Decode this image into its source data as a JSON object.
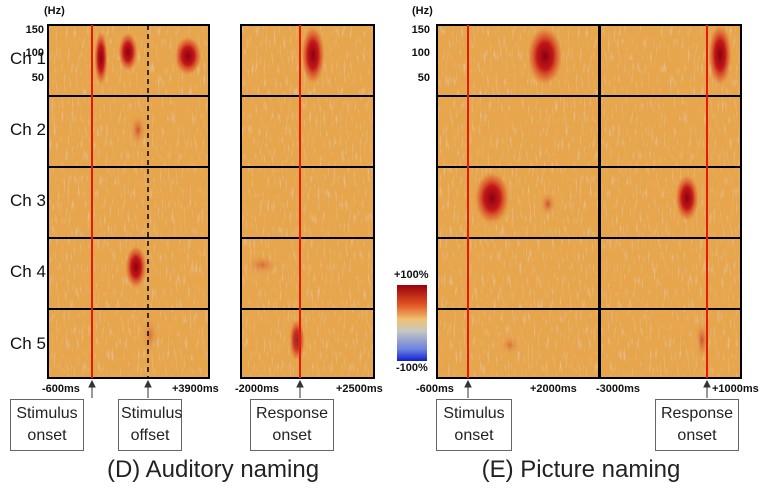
{
  "channels": [
    "Ch 1",
    "Ch 2",
    "Ch 3",
    "Ch 4",
    "Ch 5"
  ],
  "colorbar": {
    "max": "+100%",
    "min": "-100%"
  },
  "figures": [
    {
      "title": "(D) Auditory naming",
      "frequency_axis": {
        "unit": "(Hz)",
        "ticks": [
          "150",
          "100",
          "50"
        ]
      },
      "panels": [
        {
          "time_start": "-600ms",
          "time_end": "+3900ms",
          "events": [
            "Stimulus onset",
            "Stimulus offset"
          ]
        },
        {
          "time_start": "-2000ms",
          "time_end": "+2500ms",
          "events": [
            "Response onset"
          ]
        }
      ]
    },
    {
      "title": "(E) Picture naming",
      "frequency_axis": {
        "unit": "(Hz)",
        "ticks": [
          "150",
          "100",
          "50"
        ]
      },
      "panels": [
        {
          "time_start": "-600ms",
          "time_end": "+2000ms",
          "events": [
            "Stimulus onset"
          ]
        },
        {
          "time_start": "-3000ms",
          "time_end": "+1000ms",
          "events": [
            "Response onset"
          ]
        }
      ]
    }
  ]
}
